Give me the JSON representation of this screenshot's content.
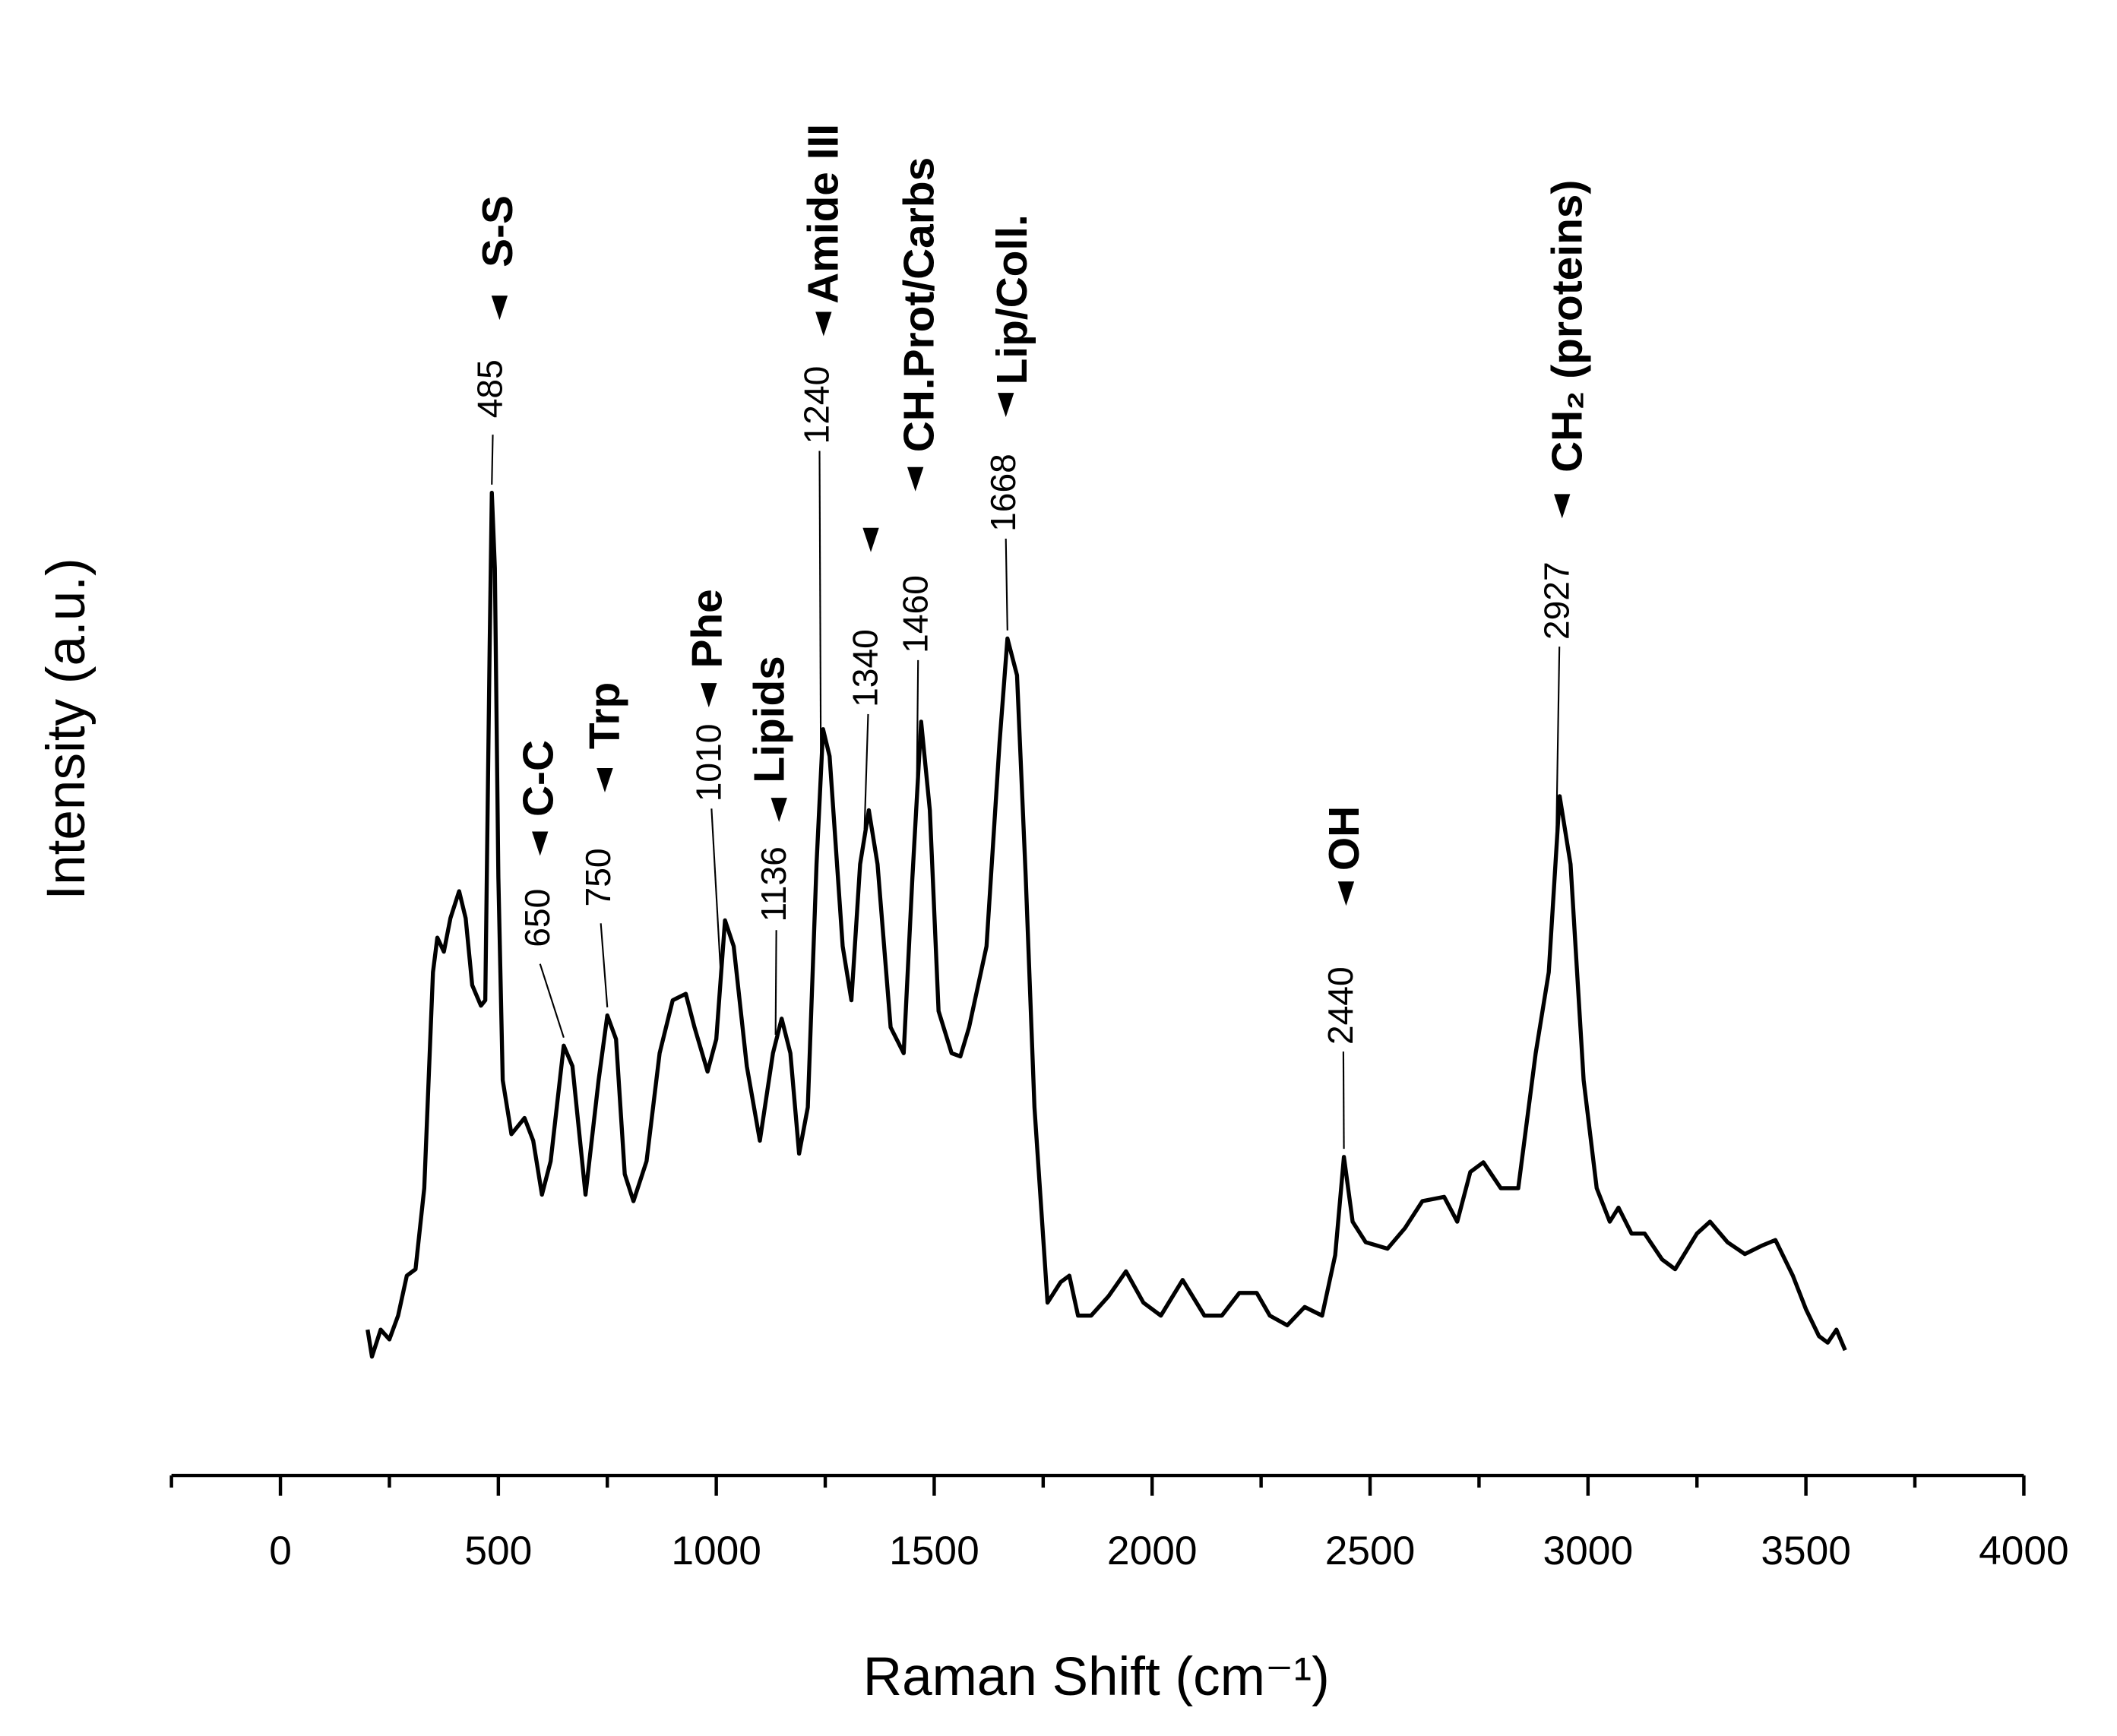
{
  "chart_data": {
    "type": "line",
    "xlabel": "Raman Shift (cm⁻¹)",
    "ylabel": "Intensity (a.u.)",
    "xlim": [
      -250,
      4000
    ],
    "xticks": [
      0,
      500,
      1000,
      1500,
      2000,
      2500,
      3000,
      3500,
      4000
    ],
    "xminorticks": [
      -250,
      250,
      750,
      1250,
      1750,
      2250,
      2750,
      3250,
      3750
    ],
    "ylim": [
      0,
      100
    ],
    "series": [
      {
        "color": "#000000",
        "x": [
          200,
          210,
          230,
          250,
          270,
          290,
          310,
          330,
          350,
          360,
          375,
          390,
          410,
          425,
          440,
          460,
          470,
          480,
          485,
          492,
          500,
          510,
          530,
          560,
          580,
          600,
          620,
          650,
          670,
          700,
          730,
          750,
          770,
          790,
          810,
          840,
          870,
          900,
          930,
          950,
          980,
          1000,
          1020,
          1040,
          1070,
          1100,
          1130,
          1150,
          1170,
          1190,
          1210,
          1230,
          1245,
          1260,
          1290,
          1310,
          1330,
          1350,
          1370,
          1400,
          1430,
          1450,
          1470,
          1490,
          1510,
          1540,
          1560,
          1580,
          1620,
          1650,
          1668,
          1690,
          1710,
          1730,
          1760,
          1790,
          1810,
          1830,
          1860,
          1900,
          1940,
          1980,
          2020,
          2070,
          2120,
          2160,
          2200,
          2240,
          2270,
          2310,
          2350,
          2390,
          2420,
          2440,
          2460,
          2490,
          2540,
          2580,
          2620,
          2670,
          2700,
          2730,
          2760,
          2800,
          2840,
          2880,
          2910,
          2935,
          2960,
          2990,
          3020,
          3050,
          3070,
          3100,
          3130,
          3170,
          3200,
          3250,
          3280,
          3320,
          3360,
          3400,
          3430,
          3470,
          3500,
          3530,
          3550,
          3570,
          3590
        ],
        "values": [
          13.5,
          11,
          13.5,
          12.6,
          14.8,
          18.5,
          19.1,
          26.6,
          46.6,
          49.8,
          48.5,
          51.6,
          54.1,
          51.6,
          45.4,
          43.5,
          44,
          76.6,
          91,
          84,
          55.4,
          36.6,
          31.6,
          33.1,
          31,
          26,
          29.1,
          39.8,
          37.9,
          26,
          36.6,
          42.6,
          40.4,
          27.9,
          25.4,
          29.1,
          39.1,
          44,
          44.6,
          41.5,
          37.4,
          40.4,
          51.4,
          49,
          37.9,
          31,
          39.1,
          42.3,
          39.1,
          29.8,
          34.1,
          56.6,
          69.1,
          66.6,
          49,
          44,
          56.6,
          61.6,
          56.6,
          41.5,
          39.1,
          55.4,
          69.8,
          61.6,
          43,
          39.1,
          38.8,
          41.5,
          49,
          67.9,
          77.5,
          74.1,
          55.4,
          34.1,
          16,
          17.9,
          18.5,
          14.8,
          14.8,
          16.6,
          18.9,
          16,
          14.8,
          18.1,
          14.8,
          14.8,
          16.9,
          16.9,
          14.8,
          13.9,
          15.6,
          14.8,
          20.4,
          29.5,
          23.5,
          21.6,
          21,
          22.9,
          25.4,
          25.8,
          23.5,
          28.1,
          29,
          26.6,
          26.6,
          39.1,
          46.6,
          62.9,
          56.6,
          36.6,
          26.6,
          23.5,
          24.8,
          22.4,
          22.4,
          20,
          19.1,
          22.4,
          23.5,
          21.6,
          20.5,
          21.3,
          21.8,
          18.5,
          15.4,
          12.9,
          12.3,
          13.5,
          11.6
        ]
      }
    ],
    "annotations": [
      {
        "x": 485,
        "name": "S-S"
      },
      {
        "x": 650,
        "name": "C-C"
      },
      {
        "x": 750,
        "name": "Trp"
      },
      {
        "x": 1010,
        "name": "Phe"
      },
      {
        "x": 1136,
        "name": "Lipids"
      },
      {
        "x": 1240,
        "name": "Amide III"
      },
      {
        "x": 1340
      },
      {
        "x": 1460,
        "name": "CH.Prot/Carbs"
      },
      {
        "x": 1668,
        "name": "Lip/Coll."
      },
      {
        "x": 2440,
        "name": "OH"
      },
      {
        "x": 2927,
        "name": "CH₂ (proteins)"
      }
    ]
  }
}
